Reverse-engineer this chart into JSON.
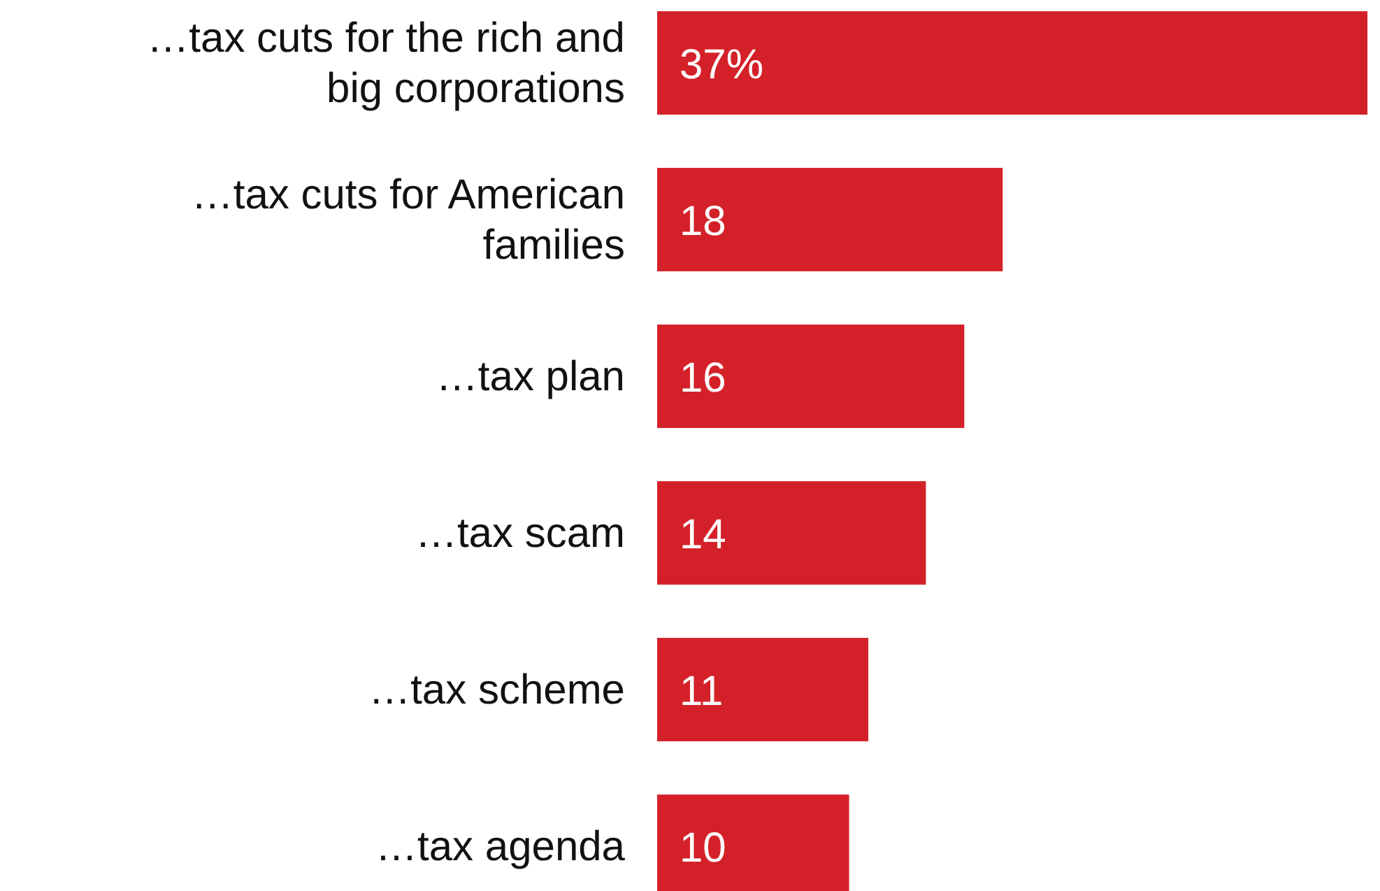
{
  "chart_data": {
    "type": "bar",
    "orientation": "horizontal",
    "categories": [
      "…tax cuts for the rich and big corporations",
      "…tax cuts for American families",
      "…tax plan",
      "…tax scam",
      "…tax scheme",
      "…tax agenda"
    ],
    "values": [
      37,
      18,
      16,
      14,
      11,
      10
    ],
    "value_labels": [
      "37%",
      "18",
      "16",
      "14",
      "11",
      "10"
    ],
    "color": "#d42129"
  }
}
